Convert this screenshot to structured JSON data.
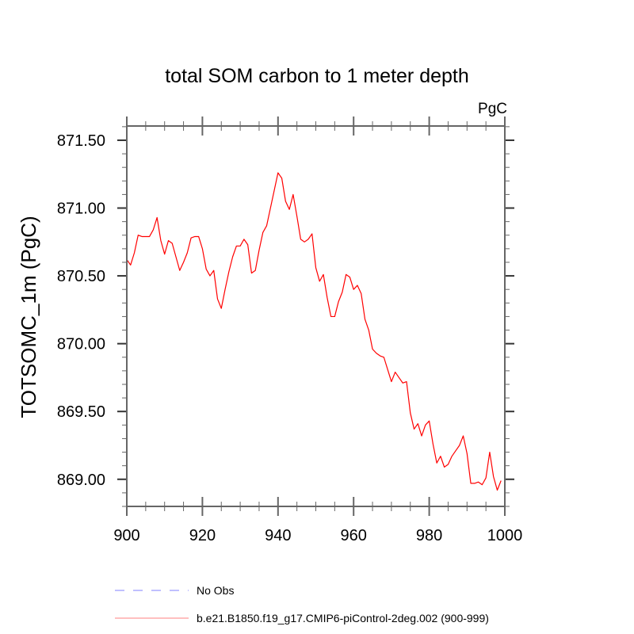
{
  "chart_data": {
    "type": "line",
    "title": "total SOM carbon to 1 meter depth",
    "units_label": "PgC",
    "xlabel": "",
    "ylabel": "TOTSOMC_1m  (PgC)",
    "xlim": [
      900,
      1000
    ],
    "ylim": [
      868.8,
      871.605
    ],
    "x_ticks": [
      900,
      920,
      940,
      960,
      980,
      1000
    ],
    "x_tick_labels": [
      "900",
      "920",
      "940",
      "960",
      "980",
      "1000"
    ],
    "x_minor_step": 5,
    "y_ticks": [
      869.0,
      869.5,
      870.0,
      870.5,
      871.0,
      871.5
    ],
    "y_tick_labels": [
      "869.00",
      "869.50",
      "870.00",
      "870.50",
      "871.00",
      "871.50"
    ],
    "y_minor_step": 0.1,
    "grid": false,
    "legend_position": "bottom-left",
    "legend": [
      {
        "label": "No Obs",
        "color": "#8080ff",
        "style": "dashed"
      },
      {
        "label": "b.e21.B1850.f19_g17.CMIP6-piControl-2deg.002 (900-999)",
        "color": "#ff8080",
        "style": "solid"
      }
    ],
    "series": [
      {
        "name": "b.e21.B1850.f19_g17.CMIP6-piControl-2deg.002 (900-999)",
        "color": "#ff0000",
        "x_start": 900,
        "x_step": 1,
        "values": [
          870.62,
          870.58,
          870.67,
          870.8,
          870.79,
          870.79,
          870.79,
          870.84,
          870.93,
          870.76,
          870.66,
          870.76,
          870.74,
          870.64,
          870.54,
          870.6,
          870.67,
          870.78,
          870.79,
          870.79,
          870.7,
          870.55,
          870.5,
          870.54,
          870.33,
          870.26,
          870.4,
          870.53,
          870.64,
          870.72,
          870.72,
          870.77,
          870.73,
          870.52,
          870.54,
          870.69,
          870.82,
          870.87,
          871.0,
          871.13,
          871.26,
          871.22,
          871.05,
          870.99,
          871.1,
          870.94,
          870.77,
          870.75,
          870.77,
          870.81,
          870.56,
          870.46,
          870.51,
          870.34,
          870.2,
          870.2,
          870.31,
          870.38,
          870.51,
          870.49,
          870.4,
          870.43,
          870.37,
          870.18,
          870.1,
          869.96,
          869.93,
          869.91,
          869.9,
          869.81,
          869.72,
          869.79,
          869.75,
          869.71,
          869.72,
          869.49,
          869.37,
          869.41,
          869.32,
          869.4,
          869.43,
          869.26,
          869.12,
          869.17,
          869.09,
          869.11,
          869.17,
          869.21,
          869.25,
          869.32,
          869.19,
          868.97,
          868.97,
          868.98,
          868.96,
          869.01,
          869.2,
          869.02,
          868.92,
          868.99
        ]
      }
    ]
  }
}
